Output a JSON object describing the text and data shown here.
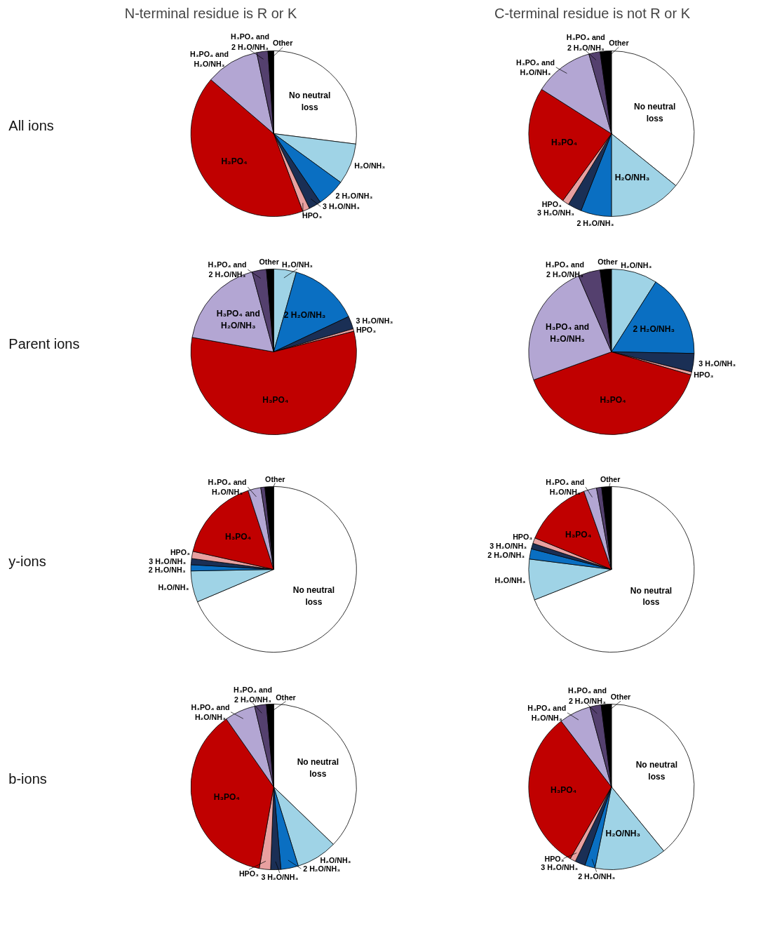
{
  "chart_data": [
    {
      "type": "pie",
      "title": "N-terminal residue is R or K",
      "ylabel": "All ions",
      "categories": [
        "No neutral loss",
        "H₂O/NH₃",
        "2 H₂O/NH₃",
        "3 H₂O/NH₃",
        "HPO₃",
        "H₃PO₄",
        "H₃PO₄ and H₂O/NH₃",
        "H₃PO₄ and 2 H₂O/NH₃",
        "Other"
      ],
      "values": [
        27,
        8,
        5.5,
        2.4,
        1.4,
        42,
        10.4,
        2.2,
        1.1
      ],
      "colors": [
        "#ffffff",
        "#9fd3e6",
        "#0a6fc2",
        "#1a2f55",
        "#e8a0a0",
        "#c00000",
        "#b3a6d3",
        "#54406e",
        "#000000"
      ]
    },
    {
      "type": "pie",
      "title": "C-terminal residue is not R or K",
      "categories": [
        "No neutral loss",
        "H₂O/NH₃",
        "2 H₂O/NH₃",
        "3 H₂O/NH₃",
        "HPO₃",
        "H₃PO₄",
        "H₃PO₄ and H₂O/NH₃",
        "H₃PO₄ and 2 H₂O/NH₃",
        "Other"
      ],
      "values": [
        35.8,
        14.2,
        6,
        2.7,
        1.3,
        24,
        11.6,
        2.2,
        2.2
      ],
      "colors": [
        "#ffffff",
        "#9fd3e6",
        "#0a6fc2",
        "#1a2f55",
        "#e8a0a0",
        "#c00000",
        "#b3a6d3",
        "#54406e",
        "#000000"
      ]
    },
    {
      "type": "pie",
      "ylabel": "Parent ions",
      "categories": [
        null,
        "H₂O/NH₃",
        "2 H₂O/NH₃",
        "3 H₂O/NH₃",
        "HPO₃",
        "H₃PO₄",
        "H₃PO₄ and H₂O/NH₃",
        "H₃PO₄ and 2 H₂O/NH₃",
        "Other"
      ],
      "values": [
        0,
        4.4,
        13.6,
        2.5,
        0.5,
        56.8,
        18,
        2.8,
        1.4
      ],
      "colors": [
        "#ffffff",
        "#9fd3e6",
        "#0a6fc2",
        "#1a2f55",
        "#e8a0a0",
        "#c00000",
        "#b3a6d3",
        "#54406e",
        "#000000"
      ]
    },
    {
      "type": "pie",
      "categories": [
        null,
        "H₂O/NH₃",
        "2 H₂O/NH₃",
        "3 H₂O/NH₃",
        "HPO₃",
        "H₃PO₄",
        "H₃PO₄ and H₂O/NH₃",
        "H₃PO₄ and 2 H₂O/NH₃",
        "Other"
      ],
      "values": [
        0,
        9,
        16.3,
        3.6,
        0.6,
        40,
        24,
        4.3,
        2.2
      ],
      "colors": [
        "#ffffff",
        "#9fd3e6",
        "#0a6fc2",
        "#1a2f55",
        "#e8a0a0",
        "#c00000",
        "#b3a6d3",
        "#54406e",
        "#000000"
      ]
    },
    {
      "type": "pie",
      "ylabel": "y-ions",
      "categories": [
        "No neutral loss",
        "H₂O/NH₃",
        "2 H₂O/NH₃",
        "3 H₂O/NH₃",
        "HPO₃",
        "H₃PO₄",
        "H₃PO₄ and H₂O/NH₃",
        null,
        "Other"
      ],
      "values": [
        68.6,
        6.1,
        1.2,
        1.2,
        1.4,
        16.5,
        2.5,
        0.8,
        1.7
      ],
      "colors": [
        "#ffffff",
        "#9fd3e6",
        "#0a6fc2",
        "#1a2f55",
        "#e8a0a0",
        "#c00000",
        "#b3a6d3",
        "#54406e",
        "#000000"
      ]
    },
    {
      "type": "pie",
      "categories": [
        "No neutral loss",
        "H₂O/NH₃",
        "2 H₂O/NH₃",
        "3 H₂O/NH₃",
        "HPO₃",
        "H₃PO₄",
        "H₃PO₄ and H₂O/NH₃",
        null,
        "Other"
      ],
      "values": [
        69,
        8,
        2,
        1.1,
        1.1,
        13.4,
        2.5,
        1,
        1.9
      ],
      "colors": [
        "#ffffff",
        "#9fd3e6",
        "#0a6fc2",
        "#1a2f55",
        "#e8a0a0",
        "#c00000",
        "#b3a6d3",
        "#54406e",
        "#000000"
      ]
    },
    {
      "type": "pie",
      "ylabel": "b-ions",
      "categories": [
        "No neutral loss",
        "H₂O/NH₃",
        "2 H₂O/NH₃",
        "3 H₂O/NH₃",
        "HPO₃",
        "H₃PO₄",
        "H₃PO₄ and H₂O/NH₃",
        "H₃PO₄ and 2 H₂O/NH₃",
        "Other"
      ],
      "values": [
        37.2,
        8,
        3.4,
        2,
        2.2,
        37.5,
        6,
        2.3,
        1.4
      ],
      "colors": [
        "#ffffff",
        "#9fd3e6",
        "#0a6fc2",
        "#1a2f55",
        "#e8a0a0",
        "#c00000",
        "#b3a6d3",
        "#54406e",
        "#000000"
      ]
    },
    {
      "type": "pie",
      "categories": [
        "No neutral loss",
        "H₂O/NH₃",
        "2 H₂O/NH₃",
        "3 H₂O/NH₃",
        "HPO₃",
        "H₃PO₄",
        "H₃PO₄ and H₂O/NH₃",
        "H₃PO₄ and 2 H₂O/NH₃",
        "Other"
      ],
      "values": [
        39.1,
        14.1,
        2,
        2,
        1.1,
        31.3,
        6.2,
        2.2,
        2
      ],
      "colors": [
        "#ffffff",
        "#9fd3e6",
        "#0a6fc2",
        "#1a2f55",
        "#e8a0a0",
        "#c00000",
        "#b3a6d3",
        "#54406e",
        "#000000"
      ]
    }
  ]
}
